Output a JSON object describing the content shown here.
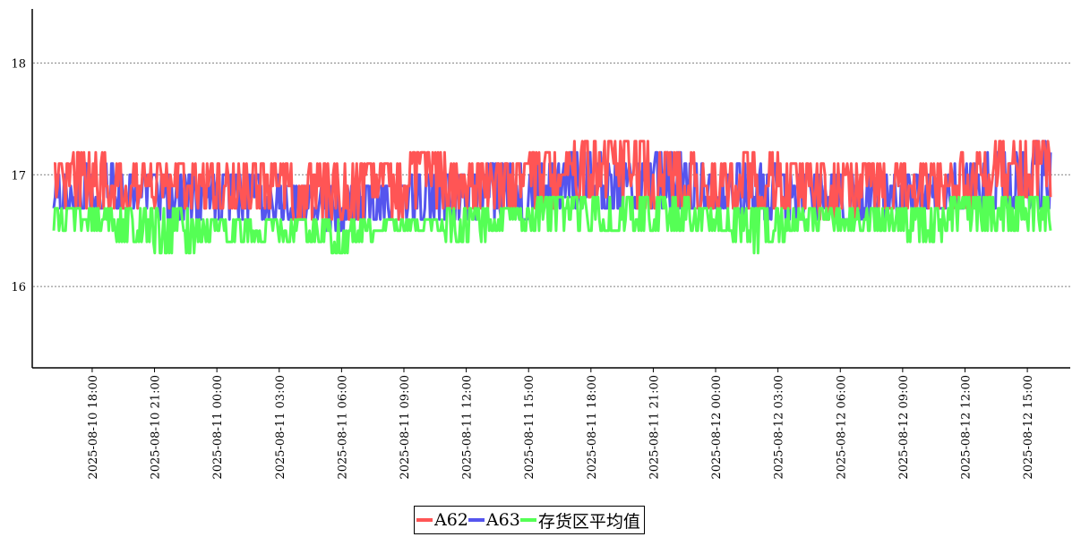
{
  "chart_data": {
    "type": "line",
    "title": "",
    "xlabel": "",
    "ylabel": "",
    "xlim": [
      "2025-08-10 16:09",
      "2025-08-12 16:07"
    ],
    "ylim": [
      15.2,
      18.5
    ],
    "yticks": [
      16,
      17,
      18
    ],
    "yticklabels": [
      "16",
      "17",
      "18"
    ],
    "xticklabels": [
      "2025-08-10  18:00",
      "2025-08-10  21:00",
      "2025-08-11  00:00",
      "2025-08-11  03:00",
      "2025-08-11  06:00",
      "2025-08-11  09:00",
      "2025-08-11  12:00",
      "2025-08-11  15:00",
      "2025-08-11  18:00",
      "2025-08-11  21:00",
      "2025-08-12  00:00",
      "2025-08-12  03:00",
      "2025-08-12  06:00",
      "2025-08-12  09:00",
      "2025-08-12  12:00",
      "2025-08-12  15:00"
    ],
    "grid": "horizontal dotted",
    "legend_position": "bottom-center",
    "colors": {
      "A62": "#ff5555",
      "A63": "#5555ee",
      "存货区平均值": "#55ff55"
    },
    "series": [
      {
        "name": "A63",
        "x_times": [
          "2025-08-10 16:00",
          "2025-08-10 18:00",
          "2025-08-10 20:00",
          "2025-08-10 22:00",
          "2025-08-11 00:00",
          "2025-08-11 02:00",
          "2025-08-11 04:00",
          "2025-08-11 06:00",
          "2025-08-11 08:00",
          "2025-08-11 10:00",
          "2025-08-11 12:00",
          "2025-08-11 14:00",
          "2025-08-11 16:00",
          "2025-08-11 18:00",
          "2025-08-11 20:00",
          "2025-08-11 22:00",
          "2025-08-12 00:00",
          "2025-08-12 02:00",
          "2025-08-12 04:00",
          "2025-08-12 06:00",
          "2025-08-12 08:00",
          "2025-08-12 10:00",
          "2025-08-12 12:00",
          "2025-08-12 14:00",
          "2025-08-12 16:00"
        ],
        "high": [
          17.0,
          17.1,
          17.0,
          17.0,
          17.0,
          17.0,
          16.9,
          16.9,
          16.9,
          17.0,
          17.0,
          17.1,
          17.1,
          17.2,
          17.1,
          17.2,
          17.0,
          17.1,
          17.0,
          17.0,
          17.0,
          17.0,
          17.1,
          17.2,
          17.3
        ],
        "low": [
          16.7,
          16.7,
          16.7,
          16.6,
          16.6,
          16.6,
          16.6,
          16.5,
          16.6,
          16.6,
          16.6,
          16.6,
          16.7,
          16.7,
          16.7,
          16.7,
          16.7,
          16.6,
          16.6,
          16.6,
          16.6,
          16.7,
          16.7,
          16.7,
          16.7
        ]
      },
      {
        "name": "A62",
        "x_times": [
          "2025-08-10 16:00",
          "2025-08-10 18:00",
          "2025-08-10 20:00",
          "2025-08-10 22:00",
          "2025-08-11 00:00",
          "2025-08-11 02:00",
          "2025-08-11 04:00",
          "2025-08-11 06:00",
          "2025-08-11 08:00",
          "2025-08-11 10:00",
          "2025-08-11 12:00",
          "2025-08-11 14:00",
          "2025-08-11 16:00",
          "2025-08-11 18:00",
          "2025-08-11 20:00",
          "2025-08-11 22:00",
          "2025-08-12 00:00",
          "2025-08-12 02:00",
          "2025-08-12 04:00",
          "2025-08-12 06:00",
          "2025-08-12 08:00",
          "2025-08-12 10:00",
          "2025-08-12 12:00",
          "2025-08-12 14:00",
          "2025-08-12 16:00"
        ],
        "high": [
          17.1,
          17.2,
          17.1,
          17.1,
          17.1,
          17.1,
          17.1,
          17.1,
          17.1,
          17.2,
          17.1,
          17.1,
          17.2,
          17.3,
          17.3,
          17.2,
          17.1,
          17.2,
          17.1,
          17.1,
          17.1,
          17.1,
          17.2,
          17.3,
          17.3
        ],
        "low": [
          16.7,
          16.7,
          16.7,
          16.7,
          16.7,
          16.7,
          16.6,
          16.6,
          16.6,
          16.7,
          16.7,
          16.7,
          16.7,
          16.8,
          16.7,
          16.7,
          16.7,
          16.7,
          16.7,
          16.6,
          16.7,
          16.7,
          16.7,
          16.8,
          16.8
        ]
      },
      {
        "name": "存货区平均值",
        "x_times": [
          "2025-08-10 16:00",
          "2025-08-10 18:00",
          "2025-08-10 20:00",
          "2025-08-10 22:00",
          "2025-08-11 00:00",
          "2025-08-11 02:00",
          "2025-08-11 04:00",
          "2025-08-11 06:00",
          "2025-08-11 08:00",
          "2025-08-11 10:00",
          "2025-08-11 12:00",
          "2025-08-11 14:00",
          "2025-08-11 16:00",
          "2025-08-11 18:00",
          "2025-08-11 20:00",
          "2025-08-11 22:00",
          "2025-08-12 00:00",
          "2025-08-12 02:00",
          "2025-08-12 04:00",
          "2025-08-12 06:00",
          "2025-08-12 08:00",
          "2025-08-12 10:00",
          "2025-08-12 12:00",
          "2025-08-12 14:00",
          "2025-08-12 16:00"
        ],
        "high": [
          16.7,
          16.7,
          16.7,
          16.7,
          16.6,
          16.6,
          16.6,
          16.6,
          16.6,
          16.6,
          16.7,
          16.7,
          16.8,
          16.8,
          16.8,
          16.8,
          16.7,
          16.7,
          16.7,
          16.7,
          16.7,
          16.7,
          16.8,
          16.8,
          16.8
        ],
        "low": [
          16.5,
          16.5,
          16.4,
          16.3,
          16.4,
          16.4,
          16.4,
          16.3,
          16.5,
          16.5,
          16.4,
          16.5,
          16.5,
          16.5,
          16.5,
          16.5,
          16.5,
          16.3,
          16.5,
          16.5,
          16.5,
          16.4,
          16.5,
          16.5,
          16.5
        ]
      }
    ]
  }
}
